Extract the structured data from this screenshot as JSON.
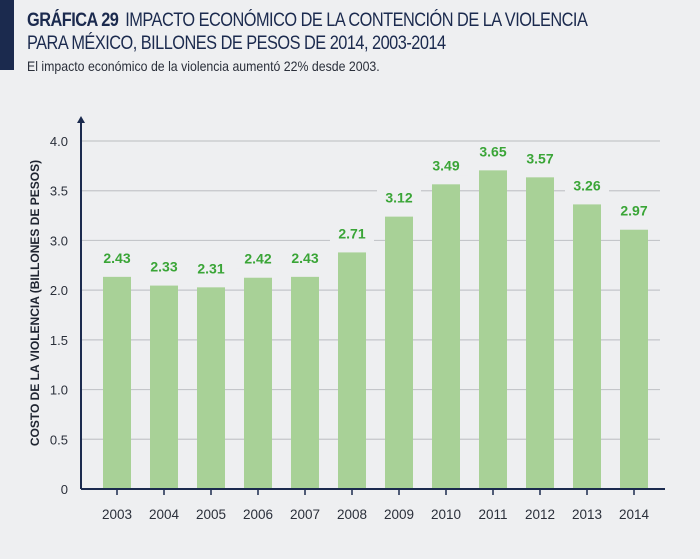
{
  "header": {
    "figure_number": "GRÁFICA 29",
    "title_line1": "IMPACTO ECONÓMICO DE LA CONTENCIÓN DE LA VIOLENCIA",
    "title_line2": "PARA MÉXICO, BILLONES DE PESOS DE 2014, 2003-2014",
    "subtitle": "El impacto económico de la violencia aumentó 22% desde 2003."
  },
  "colors": {
    "accent": "#1b2a4e",
    "bar": "#a8d197",
    "data_label": "#3aa537",
    "axis": "#1b2a4e",
    "grid": "#c4c6ca",
    "background": "#eeeff1"
  },
  "chart_data": {
    "type": "bar",
    "title": "IMPACTO ECONÓMICO DE LA CONTENCIÓN DE LA VIOLENCIA PARA MÉXICO, BILLONES DE PESOS DE 2014, 2003-2014",
    "subtitle": "El impacto económico de la violencia aumentó 22% desde 2003.",
    "xlabel": "",
    "ylabel": "COSTO DE LA VIOLENCIA (BILLONES DE PESOS)",
    "categories": [
      "2003",
      "2004",
      "2005",
      "2006",
      "2007",
      "2008",
      "2009",
      "2010",
      "2011",
      "2012",
      "2013",
      "2014"
    ],
    "values": [
      2.43,
      2.33,
      2.31,
      2.42,
      2.43,
      2.71,
      3.12,
      3.49,
      3.65,
      3.57,
      3.26,
      2.97
    ],
    "data_labels": [
      "2.43",
      "2.33",
      "2.31",
      "2.42",
      "2.43",
      "2.71",
      "3.12",
      "3.49",
      "3.65",
      "3.57",
      "3.26",
      "2.97"
    ],
    "y_tick_labels": [
      "0",
      "0.5",
      "1.0",
      "1.5",
      "2.0",
      "3.0",
      "3.5",
      "4.0"
    ],
    "ylim": [
      0,
      4.0
    ],
    "grid": true,
    "legend": "none"
  }
}
